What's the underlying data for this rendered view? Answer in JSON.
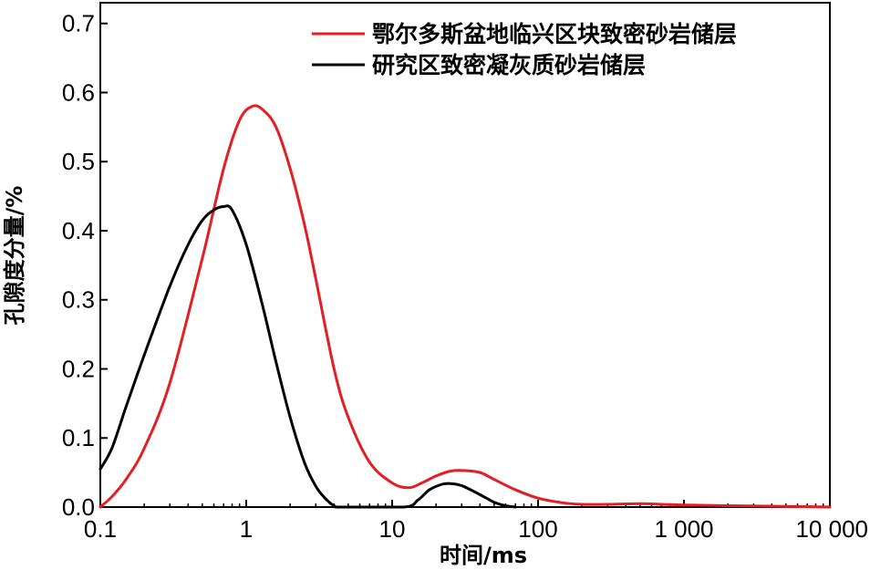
{
  "chart_data": {
    "type": "line",
    "title": "",
    "xlabel": "时间/ms",
    "ylabel": "孔隙度分量/%",
    "x_scale": "log",
    "xlim": [
      0.1,
      10000
    ],
    "ylim": [
      0,
      0.73
    ],
    "x_ticks": [
      {
        "value": 0.1,
        "label": "0.1"
      },
      {
        "value": 1,
        "label": "1"
      },
      {
        "value": 10,
        "label": "10"
      },
      {
        "value": 100,
        "label": "100"
      },
      {
        "value": 1000,
        "label": "1 000"
      },
      {
        "value": 10000,
        "label": "10 000"
      }
    ],
    "y_ticks": [
      {
        "value": 0.0,
        "label": "0.0"
      },
      {
        "value": 0.1,
        "label": "0.1"
      },
      {
        "value": 0.2,
        "label": "0.2"
      },
      {
        "value": 0.3,
        "label": "0.3"
      },
      {
        "value": 0.4,
        "label": "0.4"
      },
      {
        "value": 0.5,
        "label": "0.5"
      },
      {
        "value": 0.6,
        "label": "0.6"
      },
      {
        "value": 0.7,
        "label": "0.7"
      }
    ],
    "grid": false,
    "legend_position": "top-right",
    "series": [
      {
        "name": "鄂尔多斯盆地临兴区块致密砂岩储层",
        "color": "#e31e24",
        "x": [
          0.1,
          0.12,
          0.15,
          0.2,
          0.3,
          0.5,
          0.7,
          0.9,
          1.1,
          1.3,
          1.6,
          2,
          2.5,
          3,
          4,
          5,
          7,
          10,
          13,
          16,
          20,
          25,
          30,
          40,
          50,
          70,
          100,
          150,
          200,
          300,
          500,
          700,
          1000,
          2000,
          5000,
          10000
        ],
        "y": [
          0.0,
          0.015,
          0.04,
          0.085,
          0.18,
          0.36,
          0.49,
          0.56,
          0.58,
          0.575,
          0.55,
          0.49,
          0.41,
          0.33,
          0.2,
          0.13,
          0.065,
          0.035,
          0.028,
          0.035,
          0.045,
          0.052,
          0.053,
          0.05,
          0.04,
          0.025,
          0.013,
          0.006,
          0.004,
          0.004,
          0.005,
          0.004,
          0.003,
          0.002,
          0.001,
          0.0
        ]
      },
      {
        "name": "研究区致密凝灰质砂岩储层",
        "color": "#000000",
        "x": [
          0.1,
          0.12,
          0.15,
          0.2,
          0.3,
          0.4,
          0.5,
          0.6,
          0.7,
          0.8,
          1,
          1.3,
          1.6,
          2,
          2.5,
          3,
          3.5,
          4,
          4.5,
          12,
          15,
          18,
          22,
          25,
          30,
          40,
          50,
          60,
          70
        ],
        "y": [
          0.055,
          0.085,
          0.145,
          0.22,
          0.32,
          0.38,
          0.415,
          0.43,
          0.435,
          0.43,
          0.38,
          0.29,
          0.21,
          0.13,
          0.065,
          0.03,
          0.012,
          0.002,
          0.0,
          0.0,
          0.01,
          0.025,
          0.033,
          0.034,
          0.031,
          0.018,
          0.007,
          0.002,
          0.0
        ]
      }
    ]
  }
}
